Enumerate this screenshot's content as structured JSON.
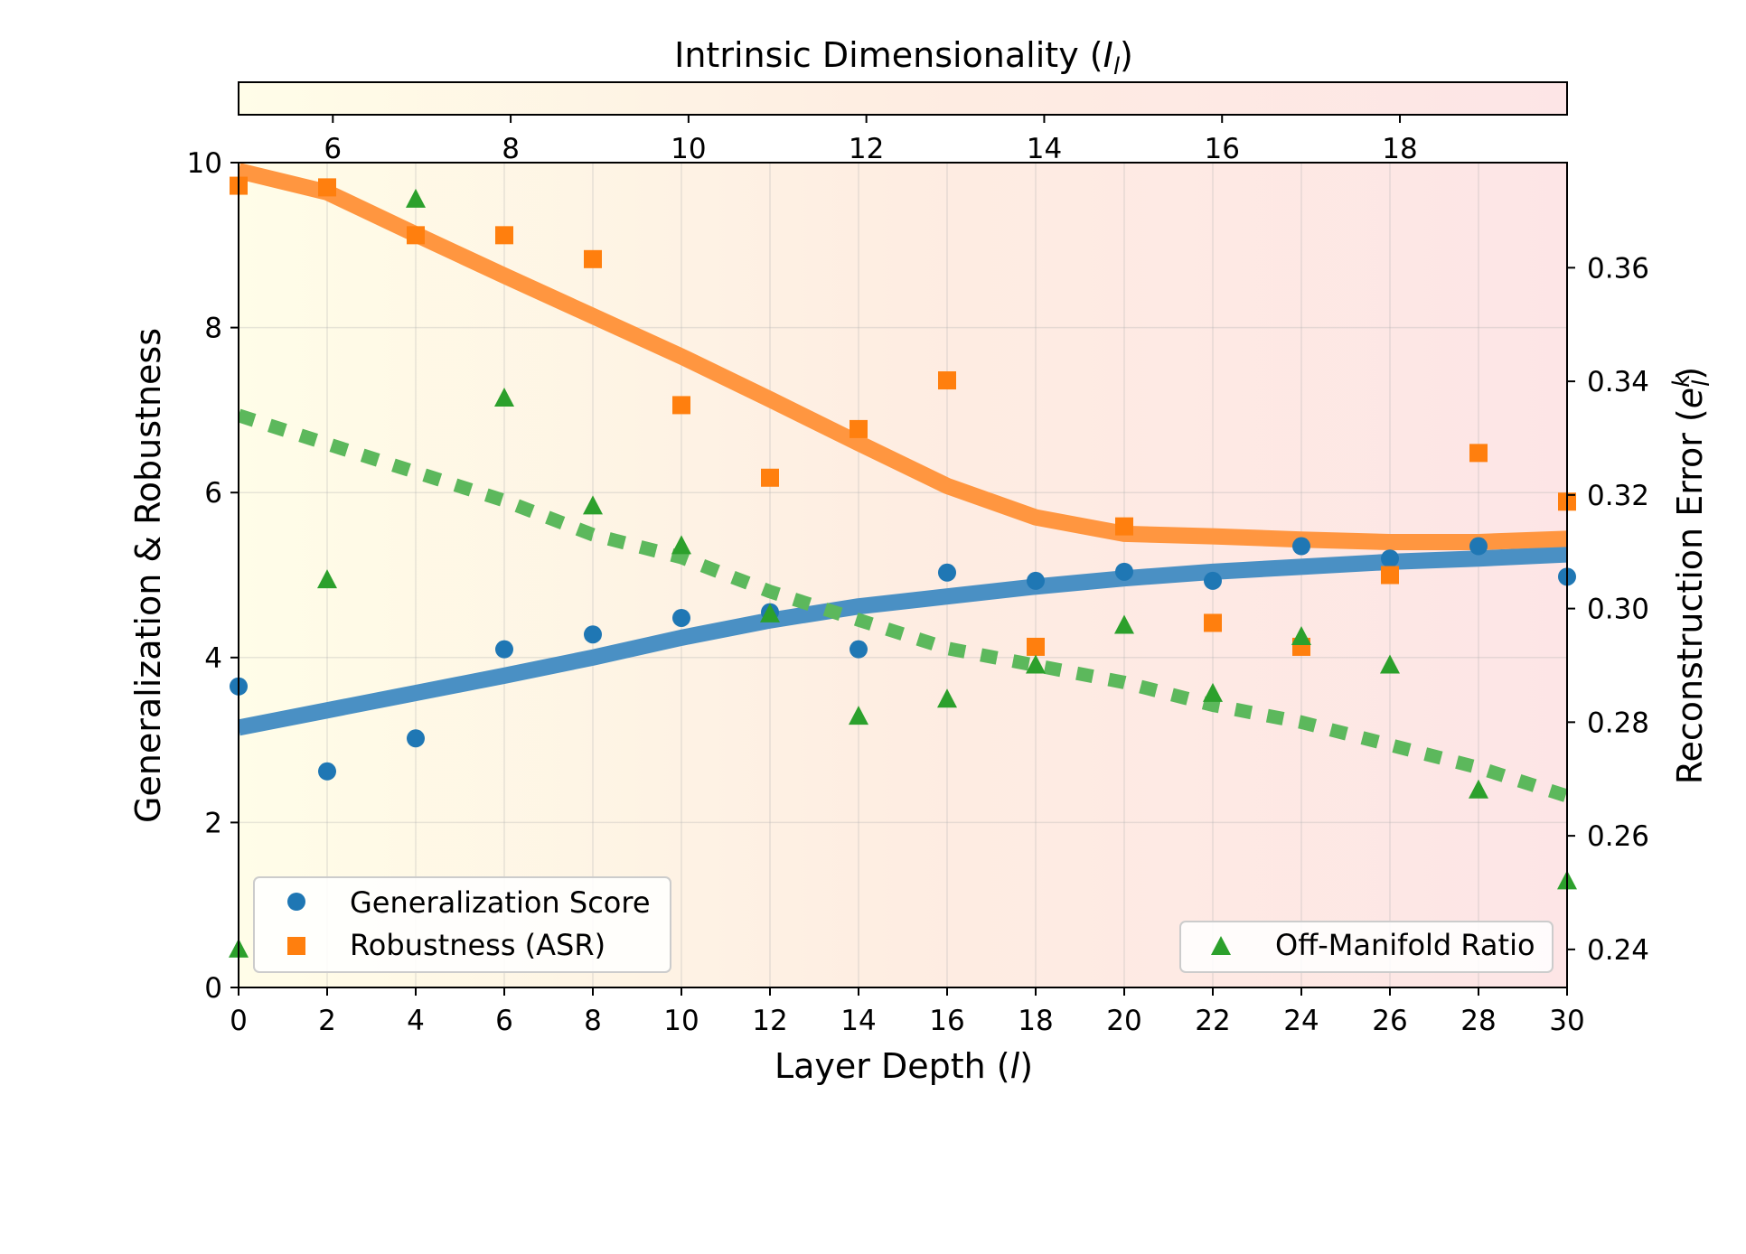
{
  "chart_data": {
    "type": "scatter",
    "xlabel": "Layer Depth (",
    "xlabel_italic": "l",
    "xlabel_close": ")",
    "ylabel": "Generalization & Robustness",
    "y2label": "Reconstruction Error (",
    "y2label_italic": "e",
    "y2label_sup": "k",
    "y2label_sub": "l",
    "y2label_close": ")",
    "colorbar_title": "Intrinsic Dimensionality (",
    "colorbar_title_italic": "I",
    "colorbar_title_sub": "l",
    "colorbar_title_close": ")",
    "xlim": [
      0,
      30
    ],
    "ylim": [
      0,
      10
    ],
    "y2lim": [
      0.2333,
      0.3785
    ],
    "colorbar_range": [
      4.94,
      19.88
    ],
    "x_ticks": [
      0,
      2,
      4,
      6,
      8,
      10,
      12,
      14,
      16,
      18,
      20,
      22,
      24,
      26,
      28,
      30
    ],
    "y_ticks": [
      0,
      2,
      4,
      6,
      8,
      10
    ],
    "y2_ticks": [
      0.24,
      0.26,
      0.28,
      0.3,
      0.32,
      0.34,
      0.36
    ],
    "colorbar_ticks": [
      6,
      8,
      10,
      12,
      14,
      16,
      18
    ],
    "colorbar_colors": [
      "#fffde8",
      "#feede2",
      "#fde5e6"
    ],
    "series": [
      {
        "name": "Generalization Score",
        "marker": "circle",
        "color": "#1f77b4",
        "axis": "left",
        "x": [
          0,
          2,
          4,
          6,
          8,
          10,
          12,
          14,
          16,
          18,
          20,
          22,
          24,
          26,
          28,
          30
        ],
        "values": [
          3.65,
          2.62,
          3.02,
          4.1,
          4.28,
          4.48,
          4.55,
          4.1,
          5.03,
          4.93,
          5.04,
          4.93,
          5.35,
          5.2,
          5.35,
          4.98
        ]
      },
      {
        "name": "Robustness (ASR)",
        "marker": "square",
        "color": "#ff7f0e",
        "axis": "left",
        "x": [
          0,
          2,
          4,
          6,
          8,
          10,
          12,
          14,
          16,
          18,
          20,
          22,
          24,
          26,
          28,
          30
        ],
        "values": [
          9.72,
          9.7,
          9.12,
          9.12,
          8.83,
          7.06,
          6.18,
          6.77,
          7.36,
          4.13,
          5.59,
          4.42,
          4.13,
          5.0,
          6.48,
          5.89
        ]
      },
      {
        "name": "Off-Manifold Ratio",
        "marker": "triangle",
        "color": "#2ca02c",
        "axis": "right",
        "x": [
          0,
          2,
          4,
          6,
          8,
          10,
          12,
          14,
          16,
          18,
          20,
          22,
          24,
          26,
          28,
          30
        ],
        "values": [
          0.24,
          0.305,
          0.372,
          0.337,
          0.318,
          0.311,
          0.299,
          0.281,
          0.284,
          0.29,
          0.297,
          0.285,
          0.295,
          0.29,
          0.268,
          0.252
        ]
      }
    ],
    "trend_lines": [
      {
        "name": "Generalization trend",
        "color": "#4a90c4",
        "style": "solid",
        "axis": "left",
        "x": [
          0,
          2,
          4,
          6,
          8,
          10,
          12,
          14,
          16,
          18,
          20,
          22,
          24,
          26,
          28,
          30
        ],
        "values": [
          3.15,
          3.36,
          3.57,
          3.78,
          4.0,
          4.24,
          4.45,
          4.62,
          4.74,
          4.86,
          4.96,
          5.04,
          5.1,
          5.16,
          5.2,
          5.25
        ]
      },
      {
        "name": "Robustness trend",
        "color": "#ff9640",
        "style": "solid",
        "axis": "left",
        "x": [
          0,
          2,
          4,
          6,
          8,
          10,
          12,
          14,
          16,
          18,
          20,
          22,
          24,
          26,
          28,
          30
        ],
        "values": [
          9.9,
          9.64,
          9.13,
          8.63,
          8.14,
          7.65,
          7.13,
          6.6,
          6.08,
          5.7,
          5.5,
          5.47,
          5.43,
          5.4,
          5.4,
          5.44
        ]
      },
      {
        "name": "Off-Manifold trend",
        "color": "#5cb85c",
        "style": "dotted",
        "axis": "right",
        "x": [
          0,
          2,
          4,
          6,
          8,
          10,
          12,
          14,
          16,
          18,
          20,
          22,
          24,
          26,
          28,
          30
        ],
        "values": [
          0.334,
          0.329,
          0.324,
          0.319,
          0.313,
          0.309,
          0.303,
          0.298,
          0.293,
          0.29,
          0.287,
          0.283,
          0.28,
          0.276,
          0.272,
          0.267
        ]
      }
    ],
    "legend_left": {
      "placement": "lower-left",
      "items": [
        "Generalization Score",
        "Robustness (ASR)"
      ]
    },
    "legend_right": {
      "placement": "lower-right",
      "items": [
        "Off-Manifold Ratio"
      ]
    }
  }
}
